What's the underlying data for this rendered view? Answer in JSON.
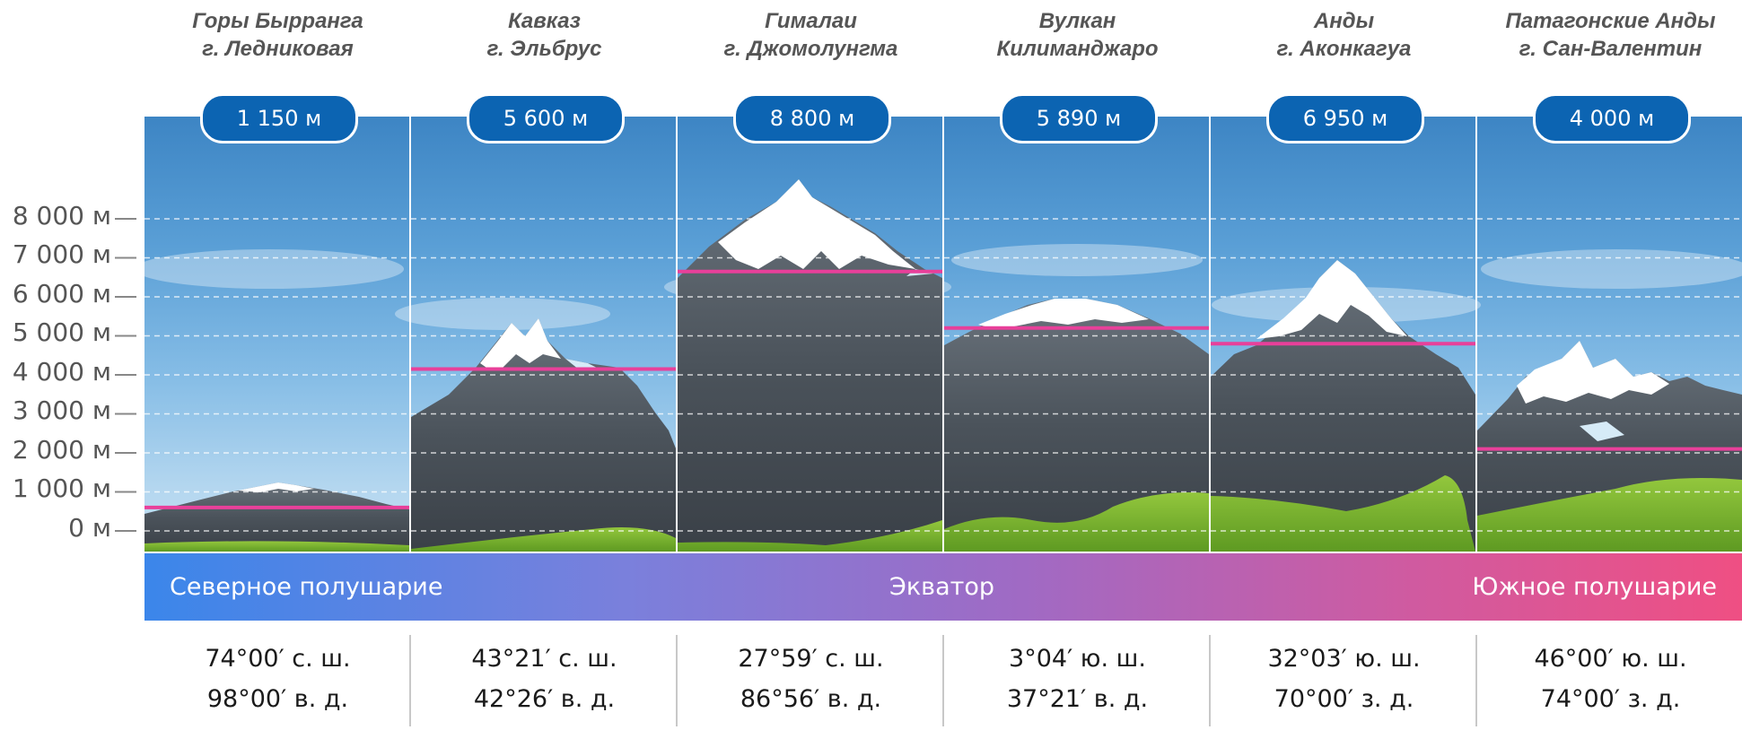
{
  "columns": [
    {
      "name": "Горы Бырранга",
      "peak": "г. Ледниковая",
      "badge": "1 150 м",
      "lat": "74°00′ с. ш.",
      "lon": "98°00′ в. д.",
      "snow_line_m": 600
    },
    {
      "name": "Кавказ",
      "peak": "г. Эльбрус",
      "badge": "5 600 м",
      "lat": "43°21′ с. ш.",
      "lon": "42°26′ в. д.",
      "snow_line_m": 4150
    },
    {
      "name": "Гималаи",
      "peak": "г. Джомолунгма",
      "badge": "8 800 м",
      "lat": "27°59′ с. ш.",
      "lon": "86°56′ в. д.",
      "snow_line_m": 6650
    },
    {
      "name": "Вулкан",
      "peak": "Килиманджаро",
      "badge": "5 890 м",
      "lat": "3°04′ ю. ш.",
      "lon": "37°21′ в. д.",
      "snow_line_m": 5200
    },
    {
      "name": "Анды",
      "peak": "г. Аконкагуа",
      "badge": "6 950 м",
      "lat": "32°03′ ю. ш.",
      "lon": "70°00′ з. д.",
      "snow_line_m": 4800
    },
    {
      "name": "Патагонские Анды",
      "peak": "г. Сан-Валентин",
      "badge": "4 000 м",
      "lat": "46°00′ ю. ш.",
      "lon": "74°00′ з. д.",
      "snow_line_m": 2100
    }
  ],
  "y_axis": {
    "labels": [
      "8 000 м",
      "7 000 м",
      "6 000 м",
      "5 000 м",
      "4 000 м",
      "3 000 м",
      "2 000 м",
      "1 000 м",
      "0 м"
    ],
    "values": [
      8000,
      7000,
      6000,
      5000,
      4000,
      3000,
      2000,
      1000,
      0
    ]
  },
  "band": {
    "north": "Северное полушарие",
    "equator": "Экватор",
    "south": "Южное полушарие"
  },
  "colors": {
    "badge": "#0c64b2",
    "snow_line": "#e8409a",
    "rock": "#4a525b",
    "grass": "#7fb934"
  }
}
